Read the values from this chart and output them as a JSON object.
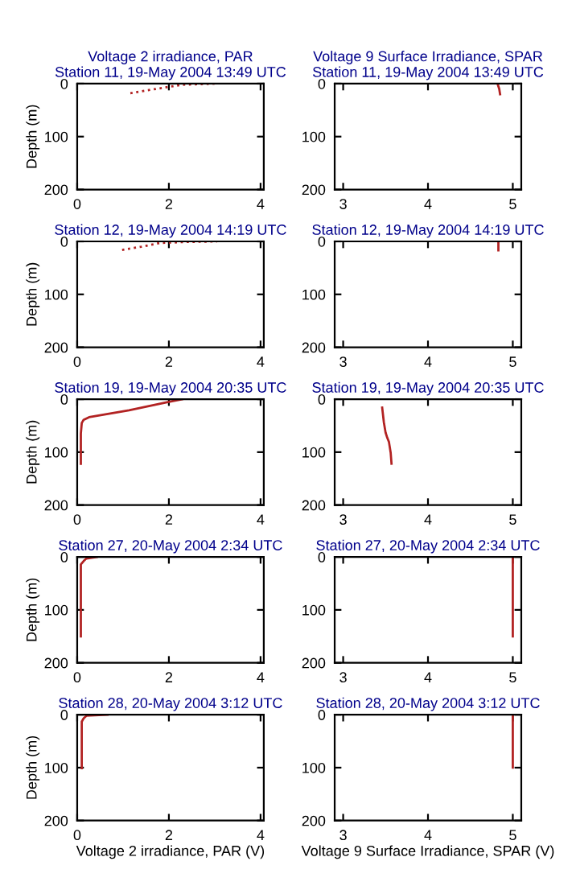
{
  "chart_data": [
    {
      "type": "line",
      "title": "Voltage 2 irradiance, PAR",
      "subtitle": "Station 11, 19-May 2004 13:49 UTC",
      "ylabel": "Depth (m)",
      "xlim": [
        0,
        4.07
      ],
      "ylim": [
        200,
        0
      ],
      "xticks": [
        0,
        2,
        4
      ],
      "yticks": [
        0,
        100,
        200
      ],
      "line_style": "dotted",
      "series": [
        {
          "color": "#b22222",
          "x": [
            1.16,
            1.5,
            2.0,
            2.3,
            3.0
          ],
          "values": [
            18,
            13,
            6,
            2,
            0
          ]
        }
      ]
    },
    {
      "type": "line",
      "title": "Voltage 9 Surface Irradiance, SPAR",
      "subtitle": "Station 11, 19-May 2004 13:49 UTC",
      "xlim": [
        2.9,
        5.1
      ],
      "ylim": [
        200,
        0
      ],
      "xticks": [
        3,
        4,
        5
      ],
      "yticks": [
        0,
        100,
        200
      ],
      "line_style": "solid",
      "series": [
        {
          "color": "#b22222",
          "x": [
            4.82,
            4.84,
            4.85
          ],
          "values": [
            0,
            10,
            20
          ]
        }
      ]
    },
    {
      "type": "line",
      "title": "Station 12, 19-May 2004 14:19 UTC",
      "ylabel": "Depth (m)",
      "xlim": [
        0,
        4.07
      ],
      "ylim": [
        200,
        0
      ],
      "xticks": [
        0,
        2,
        4
      ],
      "yticks": [
        0,
        100,
        200
      ],
      "line_style": "dotted",
      "series": [
        {
          "color": "#b22222",
          "x": [
            0.98,
            1.4,
            1.8,
            2.4,
            3.05
          ],
          "values": [
            16,
            10,
            3,
            1,
            0
          ]
        }
      ]
    },
    {
      "type": "line",
      "title": "Station 12, 19-May 2004 14:19 UTC",
      "xlim": [
        2.9,
        5.1
      ],
      "ylim": [
        200,
        0
      ],
      "xticks": [
        3,
        4,
        5
      ],
      "yticks": [
        0,
        100,
        200
      ],
      "line_style": "solid",
      "series": [
        {
          "color": "#b22222",
          "x": [
            4.83,
            4.83
          ],
          "values": [
            0,
            17
          ]
        }
      ]
    },
    {
      "type": "line",
      "title": "Station 19, 19-May 2004 20:35 UTC",
      "ylabel": "Depth (m)",
      "xlim": [
        0,
        4.07
      ],
      "ylim": [
        200,
        0
      ],
      "xticks": [
        0,
        2,
        4
      ],
      "yticks": [
        0,
        100,
        200
      ],
      "line_style": "solid",
      "series": [
        {
          "color": "#b22222",
          "x": [
            2.29,
            2.0,
            1.13,
            0.26,
            0.14,
            0.1,
            0.08,
            0.08
          ],
          "values": [
            0,
            5,
            21,
            34,
            39,
            45,
            65,
            122
          ]
        }
      ]
    },
    {
      "type": "line",
      "title": "Station 19, 19-May 2004 20:35 UTC",
      "xlim": [
        2.9,
        5.1
      ],
      "ylim": [
        200,
        0
      ],
      "xticks": [
        3,
        4,
        5
      ],
      "yticks": [
        0,
        100,
        200
      ],
      "line_style": "solid",
      "series": [
        {
          "color": "#b22222",
          "x": [
            3.46,
            3.48,
            3.5,
            3.52,
            3.54,
            3.56,
            3.57
          ],
          "values": [
            16,
            44,
            63,
            73,
            81,
            101,
            122
          ]
        }
      ]
    },
    {
      "type": "line",
      "title": "Station 27, 20-May 2004 2:34 UTC",
      "ylabel": "Depth (m)",
      "xlim": [
        0,
        4.07
      ],
      "ylim": [
        200,
        0
      ],
      "xticks": [
        0,
        2,
        4
      ],
      "yticks": [
        0,
        100,
        200
      ],
      "line_style": "solid",
      "series": [
        {
          "color": "#b22222",
          "x": [
            0.43,
            0.2,
            0.14,
            0.08,
            0.08
          ],
          "values": [
            0,
            3,
            8,
            14,
            150
          ]
        }
      ]
    },
    {
      "type": "line",
      "title": "Station 27, 20-May 2004 2:34 UTC",
      "xlim": [
        2.9,
        5.1
      ],
      "ylim": [
        200,
        0
      ],
      "xticks": [
        3,
        4,
        5
      ],
      "yticks": [
        0,
        100,
        200
      ],
      "line_style": "solid",
      "series": [
        {
          "color": "#b22222",
          "x": [
            5.0,
            5.0
          ],
          "values": [
            0,
            150
          ]
        }
      ]
    },
    {
      "type": "line",
      "title": "Station 28, 20-May 2004 3:12 UTC",
      "xlabel": "Voltage 2 irradiance, PAR (V)",
      "ylabel": "Depth (m)",
      "xlim": [
        0,
        4.07
      ],
      "ylim": [
        200,
        0
      ],
      "xticks": [
        0,
        2,
        4
      ],
      "yticks": [
        0,
        100,
        200
      ],
      "line_style": "solid",
      "series": [
        {
          "color": "#b22222",
          "x": [
            0.66,
            0.2,
            0.14,
            0.1,
            0.1
          ],
          "values": [
            0,
            2,
            7,
            13,
            101
          ]
        }
      ]
    },
    {
      "type": "line",
      "title": "Station 28, 20-May 2004 3:12 UTC",
      "xlabel": "Voltage 9 Surface Irradiance, SPAR (V)",
      "xlim": [
        2.9,
        5.1
      ],
      "ylim": [
        200,
        0
      ],
      "xticks": [
        3,
        4,
        5
      ],
      "yticks": [
        0,
        100,
        200
      ],
      "line_style": "solid",
      "series": [
        {
          "color": "#b22222",
          "x": [
            5.0,
            5.0
          ],
          "values": [
            0,
            100
          ]
        }
      ]
    }
  ]
}
